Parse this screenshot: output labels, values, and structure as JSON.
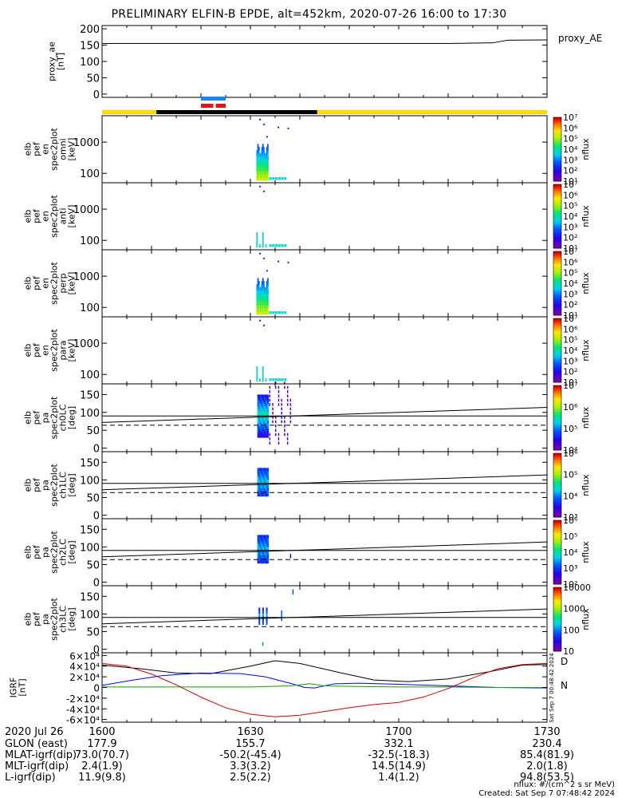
{
  "title": "PRELIMINARY ELFIN-B EPDE, alt=452km, 2020-07-26 16:00 to 17:30",
  "chart_data": {
    "type": "heatmap",
    "title": "PRELIMINARY ELFIN-B EPDE, alt=452km, 2020-07-26 16:00 to 17:30",
    "time_range_minutes": [
      0,
      90
    ],
    "x_tick_labels": [
      "1600",
      "1630",
      "1700",
      "1730"
    ],
    "x_tick_minutes": [
      0,
      30,
      60,
      90
    ],
    "panels": [
      {
        "id": "proxy_ae",
        "ylabel_lines": [
          "proxy_ae",
          "[nT]"
        ],
        "yticks": [
          0,
          50,
          100,
          150,
          200
        ],
        "ylim": [
          -10,
          210
        ],
        "legend": "proxy_AE",
        "series": [
          {
            "name": "proxy_AE",
            "t": [
              0,
              10,
              30,
              50,
              70,
              79,
              82,
              90
            ],
            "v": [
              155,
              155,
              155,
              155,
              155,
              157,
              165,
              166
            ]
          }
        ]
      },
      {
        "id": "bar",
        "note": "science zone / collection bar"
      },
      {
        "id": "spec_omni",
        "ylabel_lines": [
          "elb",
          "pef",
          "en",
          "spec2plot",
          "omni",
          "[keV]"
        ],
        "ytick_labels": [
          "100",
          "1000"
        ],
        "cbar_labels": [
          "10¹",
          "10²",
          "10³",
          "10⁴",
          "10⁵",
          "10⁶",
          "10⁷"
        ],
        "cbar_title": "nflux"
      },
      {
        "id": "spec_anti",
        "ylabel_lines": [
          "elb",
          "pef",
          "en",
          "spec2plot",
          "anti",
          "[keV]"
        ],
        "ytick_labels": [
          "100",
          "1000"
        ],
        "cbar_labels": [
          "10¹",
          "10²",
          "10³",
          "10⁴",
          "10⁵",
          "10⁶",
          "10⁷"
        ],
        "cbar_title": "nflux"
      },
      {
        "id": "spec_perp",
        "ylabel_lines": [
          "elb",
          "pef",
          "en",
          "spec2plot",
          "perp",
          "[keV]"
        ],
        "ytick_labels": [
          "100",
          "1000"
        ],
        "cbar_labels": [
          "10¹",
          "10²",
          "10³",
          "10⁴",
          "10⁵",
          "10⁶",
          "10⁷"
        ],
        "cbar_title": "nflux"
      },
      {
        "id": "spec_para",
        "ylabel_lines": [
          "elb",
          "pef",
          "en",
          "spec2plot",
          "para",
          "[keV]"
        ],
        "ytick_labels": [
          "100",
          "1000"
        ],
        "cbar_labels": [
          "10¹",
          "10²",
          "10³",
          "10⁴",
          "10⁵",
          "10⁶",
          "10⁷"
        ],
        "cbar_title": "nflux"
      },
      {
        "id": "pa_ch0",
        "ylabel_lines": [
          "elb",
          "pef",
          "pa",
          "spec2plot",
          "ch0LC",
          "[deg]"
        ],
        "yticks": [
          0,
          50,
          100,
          150
        ],
        "cbar_labels": [
          "10⁴",
          "10⁵",
          "10⁶",
          "10⁷"
        ],
        "cbar_title": "nflux"
      },
      {
        "id": "pa_ch1",
        "ylabel_lines": [
          "elb",
          "pef",
          "pa",
          "spec2plot",
          "ch1LC",
          "[deg]"
        ],
        "yticks": [
          0,
          50,
          100,
          150
        ],
        "cbar_labels": [
          "10³",
          "10⁴",
          "10⁵",
          "10⁶"
        ],
        "cbar_title": "nflux"
      },
      {
        "id": "pa_ch2",
        "ylabel_lines": [
          "elb",
          "pef",
          "pa",
          "spec2plot",
          "ch2LC",
          "[deg]"
        ],
        "yticks": [
          0,
          50,
          100,
          150
        ],
        "cbar_labels": [
          "10²",
          "10³",
          "10⁴",
          "10⁵",
          "10⁶"
        ],
        "cbar_title": "nflux"
      },
      {
        "id": "pa_ch3",
        "ylabel_lines": [
          "elb",
          "pef",
          "pa",
          "spec2plot",
          "ch3LC",
          "[deg]"
        ],
        "yticks": [
          0,
          50,
          100,
          150
        ],
        "cbar_labels": [
          "10",
          "100",
          "1000",
          "10000"
        ],
        "cbar_title": "nflux"
      },
      {
        "id": "igrf",
        "ylabel_lines": [
          "IGRF",
          "[nT]"
        ],
        "ytick_labels": [
          "-6×10⁴",
          "-4×10⁴",
          "-2×10⁴",
          "0",
          "2×10⁴",
          "4×10⁴",
          "6×10⁴"
        ],
        "yticks": [
          -60000,
          -40000,
          -20000,
          0,
          20000,
          40000,
          60000
        ],
        "legend": [
          "D",
          "N"
        ],
        "series": [
          {
            "name": "black",
            "color": "#000000",
            "t": [
              0,
              8,
              15,
              22,
              30,
              35,
              40,
              48,
              55,
              62,
              70,
              78,
              85,
              90
            ],
            "v": [
              42000,
              35000,
              27000,
              26000,
              40000,
              50000,
              45000,
              28000,
              14000,
              11000,
              16000,
              29000,
              42000,
              43000
            ]
          },
          {
            "name": "blue",
            "color": "#0000ff",
            "t": [
              0,
              5,
              12,
              20,
              28,
              33,
              38,
              41,
              43,
              47,
              52,
              60,
              70,
              80,
              90
            ],
            "v": [
              4000,
              12000,
              22000,
              27000,
              26000,
              20000,
              8000,
              0,
              -1000,
              7000,
              8000,
              6000,
              3000,
              0,
              -1000
            ]
          },
          {
            "name": "green",
            "color": "#00aa00",
            "t": [
              0,
              10,
              20,
              30,
              38,
              42,
              45,
              50,
              60,
              70,
              80,
              90
            ],
            "v": [
              1000,
              1000,
              1000,
              1000,
              3000,
              7000,
              3000,
              2000,
              1000,
              1000,
              0,
              0
            ]
          },
          {
            "name": "red",
            "color": "#cc0000",
            "t": [
              0,
              5,
              10,
              15,
              20,
              25,
              30,
              35,
              40,
              45,
              50,
              55,
              60,
              65,
              70,
              75,
              80,
              85,
              90
            ],
            "v": [
              45000,
              40000,
              25000,
              5000,
              -18000,
              -38000,
              -50000,
              -55000,
              -52000,
              -45000,
              -38000,
              -32000,
              -28000,
              -18000,
              -2000,
              18000,
              35000,
              43000,
              45000
            ]
          }
        ]
      }
    ],
    "orbit_table": {
      "date_label": "2020 Jul 26",
      "times": [
        "1600",
        "1630",
        "1700",
        "1730"
      ],
      "rows": [
        {
          "label": "GLON (east)",
          "values": [
            "177.9",
            "155.7",
            "332.1",
            "230.4"
          ]
        },
        {
          "label": "MLAT-igrf(dip)",
          "values": [
            "73.0(70.7)",
            "-50.2(-45.4)",
            "-32.5(-18.3)",
            "85.4(81.9)"
          ]
        },
        {
          "label": "MLT-igrf(dip)",
          "values": [
            "2.4(1.9)",
            "3.3(3.2)",
            "14.5(14.9)",
            "2.0(1.8)"
          ]
        },
        {
          "label": "L-igrf(dip)",
          "values": [
            "11.9(9.8)",
            "2.5(2.2)",
            "1.4(1.2)",
            "94.8(53.5)"
          ]
        }
      ]
    },
    "footer": {
      "units": "nflux: #/(cm^2 s sr MeV)",
      "created": "Created: Sat Sep  7 07:48:42 2024",
      "side_stamp": "Sat Sep  7 00:48:42 2024"
    }
  }
}
